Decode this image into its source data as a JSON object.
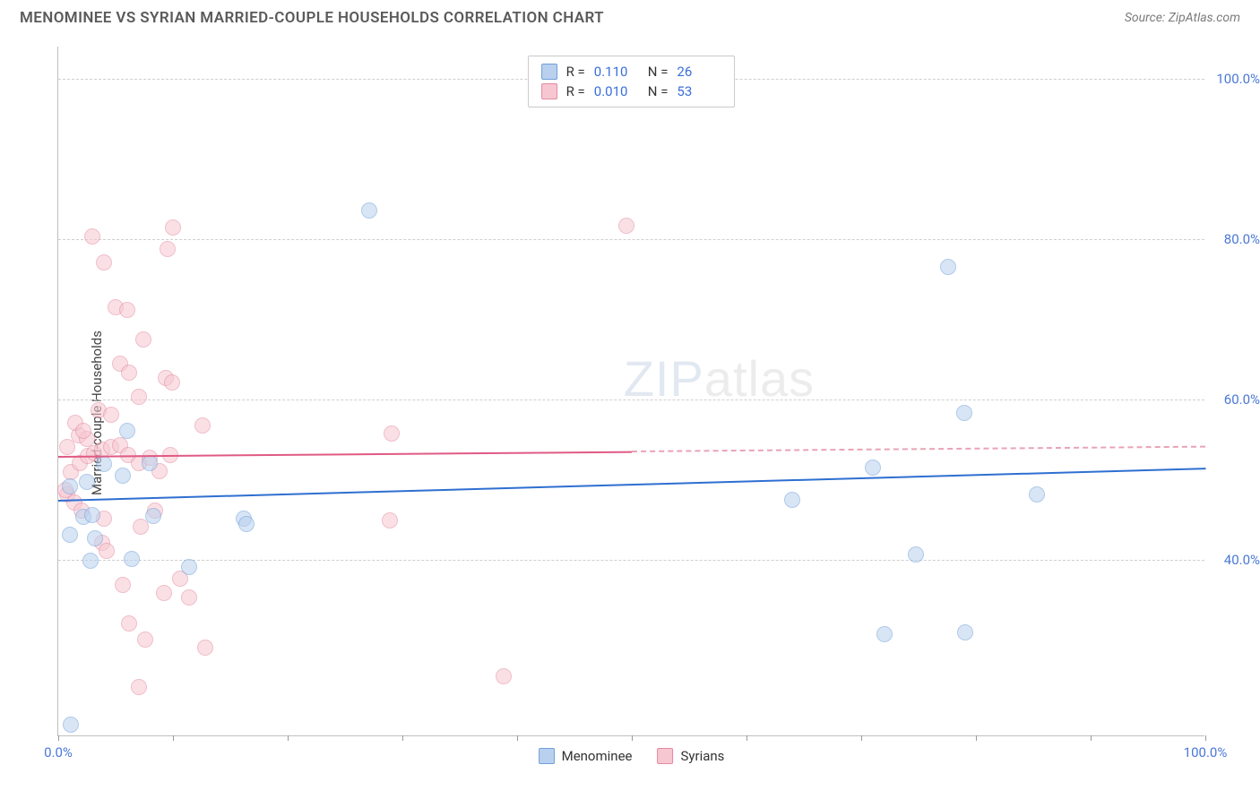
{
  "header": {
    "title": "MENOMINEE VS SYRIAN MARRIED-COUPLE HOUSEHOLDS CORRELATION CHART",
    "source_label": "Source: ZipAtlas.com"
  },
  "chart": {
    "ylabel": "Married-couple Households",
    "xlim": [
      0,
      100
    ],
    "ylim": [
      18,
      104
    ],
    "x_ticks": [
      0,
      10,
      20,
      30,
      40,
      50,
      60,
      70,
      80,
      90,
      100
    ],
    "x_tick_labels": {
      "0": "0.0%",
      "100": "100.0%"
    },
    "y_gridlines": [
      40,
      60,
      80,
      100
    ],
    "y_tick_labels": {
      "40": "40.0%",
      "60": "60.0%",
      "80": "80.0%",
      "100": "100.0%"
    },
    "grid_color": "#cfcfcf",
    "axis_color": "#bfbfbf",
    "tick_label_color": "#4a78d6",
    "background": "#ffffff",
    "marker_radius": 9,
    "marker_opacity": 0.55,
    "watermark": {
      "zip": "ZIP",
      "atlas": "atlas"
    }
  },
  "series": {
    "menominee": {
      "label": "Menominee",
      "fill": "#b9d1ee",
      "stroke": "#6f9fd8",
      "trend_color": "#2e6fd1",
      "trend_dash_color": "#2e6fd1",
      "r_value": "0.110",
      "n_value": "26",
      "trend": {
        "x1": 0,
        "y1": 47.5,
        "x2": 100,
        "y2": 51.5,
        "solid_until_x": 100
      },
      "points": [
        [
          1.1,
          19.3
        ],
        [
          2.8,
          39.8
        ],
        [
          6.4,
          40.0
        ],
        [
          3.2,
          42.6
        ],
        [
          1.0,
          43.0
        ],
        [
          2.2,
          45.2
        ],
        [
          8.3,
          45.4
        ],
        [
          1.0,
          49.0
        ],
        [
          2.5,
          49.6
        ],
        [
          5.6,
          50.4
        ],
        [
          4.0,
          51.8
        ],
        [
          8.0,
          52.0
        ],
        [
          16.2,
          45.0
        ],
        [
          16.4,
          44.4
        ],
        [
          11.4,
          39.0
        ],
        [
          6.0,
          56.0
        ],
        [
          3.0,
          45.5
        ],
        [
          27.1,
          83.4
        ],
        [
          64.0,
          47.4
        ],
        [
          71.0,
          51.4
        ],
        [
          72.0,
          30.6
        ],
        [
          79.1,
          30.8
        ],
        [
          77.6,
          76.4
        ],
        [
          74.8,
          40.6
        ],
        [
          79.0,
          58.2
        ],
        [
          85.3,
          48.0
        ]
      ]
    },
    "syrians": {
      "label": "Syrians",
      "fill": "#f7c7d1",
      "stroke": "#e38aa0",
      "trend_color": "#e05a84",
      "trend_dash_color": "#e9a3b6",
      "r_value": "0.010",
      "n_value": "53",
      "trend": {
        "x1": 0,
        "y1": 53.0,
        "x2": 100,
        "y2": 54.2,
        "solid_until_x": 50
      },
      "points": [
        [
          3.0,
          80.2
        ],
        [
          4.0,
          77.0
        ],
        [
          10.0,
          81.3
        ],
        [
          9.5,
          78.6
        ],
        [
          5.0,
          71.4
        ],
        [
          6.0,
          71.0
        ],
        [
          7.4,
          67.4
        ],
        [
          5.4,
          64.4
        ],
        [
          6.2,
          63.2
        ],
        [
          9.4,
          62.6
        ],
        [
          9.9,
          62.0
        ],
        [
          7.0,
          60.2
        ],
        [
          3.5,
          58.6
        ],
        [
          4.6,
          58.0
        ],
        [
          1.8,
          55.4
        ],
        [
          2.5,
          55.0
        ],
        [
          0.8,
          48.0
        ],
        [
          1.1,
          50.8
        ],
        [
          1.9,
          52.0
        ],
        [
          2.6,
          52.8
        ],
        [
          3.1,
          53.2
        ],
        [
          3.8,
          53.6
        ],
        [
          4.6,
          54.0
        ],
        [
          5.4,
          54.2
        ],
        [
          6.1,
          53.0
        ],
        [
          7.0,
          52.0
        ],
        [
          8.0,
          52.6
        ],
        [
          8.8,
          51.0
        ],
        [
          0.6,
          48.6
        ],
        [
          1.4,
          47.0
        ],
        [
          2.0,
          46.0
        ],
        [
          4.0,
          45.0
        ],
        [
          7.2,
          44.0
        ],
        [
          8.4,
          46.0
        ],
        [
          9.8,
          53.0
        ],
        [
          12.6,
          56.6
        ],
        [
          5.6,
          36.8
        ],
        [
          6.2,
          32.0
        ],
        [
          7.6,
          30.0
        ],
        [
          9.2,
          35.8
        ],
        [
          10.6,
          37.6
        ],
        [
          12.8,
          29.0
        ],
        [
          11.4,
          35.2
        ],
        [
          7.0,
          24.0
        ],
        [
          3.8,
          42.0
        ],
        [
          4.2,
          41.0
        ],
        [
          29.1,
          55.6
        ],
        [
          28.9,
          44.8
        ],
        [
          38.8,
          25.4
        ],
        [
          49.5,
          81.6
        ],
        [
          0.8,
          54.0
        ],
        [
          1.5,
          57.0
        ],
        [
          2.2,
          56.0
        ]
      ]
    }
  },
  "stats_box": {
    "r_label": "R  =",
    "n_label": "N  ="
  },
  "bottom_legend": {
    "items": [
      "menominee",
      "syrians"
    ]
  }
}
